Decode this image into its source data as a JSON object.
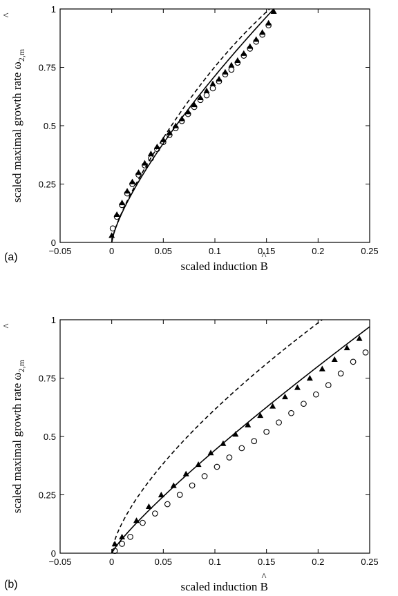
{
  "chart_data": [
    {
      "type": "line",
      "panel": "(a)",
      "xlabel": "scaled induction B",
      "xlabel_hat": "^",
      "ylabel": "scaled maximal growth rate ω",
      "ylabel_hat": "^",
      "ylabel_sub": "2,m",
      "xlim": [
        -0.05,
        0.25
      ],
      "ylim": [
        0,
        1
      ],
      "xticks": [
        "−0.05",
        "0",
        "0.05",
        "0.1",
        "0.15",
        "0.2",
        "0.25"
      ],
      "yticks": [
        "0",
        "0.25",
        "0.5",
        "0.75",
        "1"
      ],
      "grid": false,
      "series": [
        {
          "style": "solid",
          "fn": {
            "a": 0.0,
            "p": 1.0
          },
          "x": [
            0,
            0.157
          ]
        },
        {
          "style": "dashed",
          "fn": {
            "a": 0.0,
            "p": 1.0
          },
          "x": [
            0,
            0.153
          ]
        },
        {
          "style": "triangles",
          "x": [
            0.0,
            0.005,
            0.01,
            0.015,
            0.02,
            0.026,
            0.032,
            0.038,
            0.044,
            0.05,
            0.056,
            0.062,
            0.068,
            0.074,
            0.08,
            0.086,
            0.092,
            0.098,
            0.104,
            0.11,
            0.116,
            0.122,
            0.128,
            0.134,
            0.14,
            0.146,
            0.152,
            0.157
          ],
          "y": [
            0.03,
            0.12,
            0.17,
            0.22,
            0.26,
            0.3,
            0.34,
            0.38,
            0.41,
            0.44,
            0.47,
            0.5,
            0.53,
            0.56,
            0.59,
            0.62,
            0.65,
            0.68,
            0.7,
            0.73,
            0.76,
            0.78,
            0.81,
            0.84,
            0.87,
            0.9,
            0.94,
            0.99
          ]
        },
        {
          "style": "circles",
          "x": [
            0.001,
            0.005,
            0.01,
            0.015,
            0.02,
            0.026,
            0.032,
            0.038,
            0.044,
            0.05,
            0.056,
            0.062,
            0.068,
            0.074,
            0.08,
            0.086,
            0.092,
            0.098,
            0.104,
            0.11,
            0.116,
            0.122,
            0.128,
            0.134,
            0.14,
            0.146,
            0.152
          ],
          "y": [
            0.06,
            0.11,
            0.16,
            0.21,
            0.25,
            0.29,
            0.33,
            0.36,
            0.4,
            0.43,
            0.46,
            0.49,
            0.52,
            0.55,
            0.58,
            0.61,
            0.63,
            0.66,
            0.69,
            0.72,
            0.74,
            0.77,
            0.8,
            0.83,
            0.86,
            0.89,
            0.93
          ]
        }
      ]
    },
    {
      "type": "line",
      "panel": "(b)",
      "xlabel": "scaled induction B",
      "xlabel_hat": "^",
      "ylabel": "scaled maximal growth rate ω",
      "ylabel_hat": "^",
      "ylabel_sub": "2,m",
      "xlim": [
        -0.05,
        0.25
      ],
      "ylim": [
        0,
        1
      ],
      "xticks": [
        "−0.05",
        "0",
        "0.05",
        "0.1",
        "0.15",
        "0.2",
        "0.25"
      ],
      "yticks": [
        "0",
        "0.25",
        "0.5",
        "0.75",
        "1"
      ],
      "grid": false,
      "series": [
        {
          "style": "solid",
          "fn": {
            "a": 0.1,
            "p": 0.7
          },
          "x": [
            0,
            0.25
          ]
        },
        {
          "style": "dashed",
          "fn": {
            "a": 0.0,
            "p": 1.0
          },
          "x": [
            0,
            0.204
          ]
        },
        {
          "style": "triangles",
          "x": [
            0.003,
            0.01,
            0.024,
            0.036,
            0.048,
            0.06,
            0.072,
            0.084,
            0.096,
            0.108,
            0.12,
            0.132,
            0.144,
            0.156,
            0.168,
            0.18,
            0.192,
            0.204,
            0.216,
            0.228,
            0.24
          ],
          "y": [
            0.04,
            0.07,
            0.14,
            0.2,
            0.25,
            0.29,
            0.34,
            0.38,
            0.43,
            0.47,
            0.51,
            0.55,
            0.59,
            0.63,
            0.67,
            0.71,
            0.75,
            0.79,
            0.83,
            0.88,
            0.92
          ]
        },
        {
          "style": "circles",
          "x": [
            0.003,
            0.01,
            0.018,
            0.03,
            0.042,
            0.054,
            0.066,
            0.078,
            0.09,
            0.102,
            0.114,
            0.126,
            0.138,
            0.15,
            0.162,
            0.174,
            0.186,
            0.198,
            0.21,
            0.222,
            0.234,
            0.246
          ],
          "y": [
            0.01,
            0.04,
            0.07,
            0.13,
            0.17,
            0.21,
            0.25,
            0.29,
            0.33,
            0.37,
            0.41,
            0.45,
            0.48,
            0.52,
            0.56,
            0.6,
            0.64,
            0.68,
            0.72,
            0.77,
            0.82,
            0.86
          ]
        }
      ]
    }
  ]
}
